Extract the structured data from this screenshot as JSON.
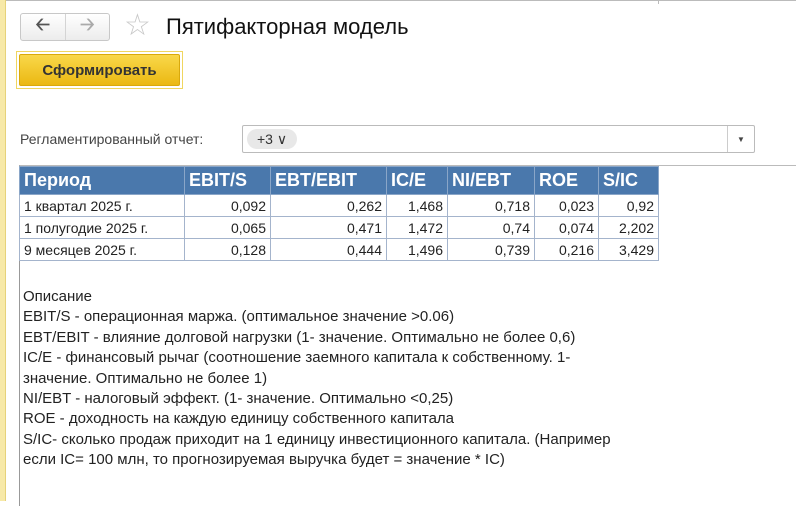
{
  "window": {
    "title": "Пятифакторная модель"
  },
  "toolbar": {
    "generate_label": "Сформировать",
    "back_icon": "arrow-left",
    "forward_icon": "arrow-right",
    "favorite_icon": "star"
  },
  "filter": {
    "label": "Регламентированный отчет:",
    "chip": "+3 ∨"
  },
  "table": {
    "headers": [
      "Период",
      "EBIT/S",
      "EBT/EBIT",
      "IC/E",
      "NI/EBT",
      "ROE",
      "S/IC"
    ],
    "rows": [
      [
        "1 квартал 2025 г.",
        "0,092",
        "0,262",
        "1,468",
        "0,718",
        "0,023",
        "0,92"
      ],
      [
        "1 полугодие 2025 г.",
        "0,065",
        "0,471",
        "1,472",
        "0,74",
        "0,074",
        "2,202"
      ],
      [
        "9 месяцев 2025 г.",
        "0,128",
        "0,444",
        "1,496",
        "0,739",
        "0,216",
        "3,429"
      ]
    ]
  },
  "description": {
    "title": "Описание",
    "lines": [
      "EBIT/S - операционная маржа. (оптимальное значение >0.06)",
      "EBT/EBIT - влияние долговой нагрузки (1- значение. Оптимально не более 0,6)",
      "IC/E - финансовый рычаг (соотношение заемного капитала к собственному. 1-",
      "значение. Оптимально не более 1)",
      "NI/EBT - налоговый эффект. (1- значение. Оптимально <0,25)",
      "ROE - доходность на каждую единицу собственного капитала",
      "S/IC- сколько продаж приходит на 1 единицу инвестиционного капитала. (Например",
      "если IC= 100 млн, то прогнозируемая выручка будет = значение * IC)"
    ]
  },
  "colors": {
    "header_bg": "#4a78ac",
    "button_bg": "#f5c823"
  }
}
